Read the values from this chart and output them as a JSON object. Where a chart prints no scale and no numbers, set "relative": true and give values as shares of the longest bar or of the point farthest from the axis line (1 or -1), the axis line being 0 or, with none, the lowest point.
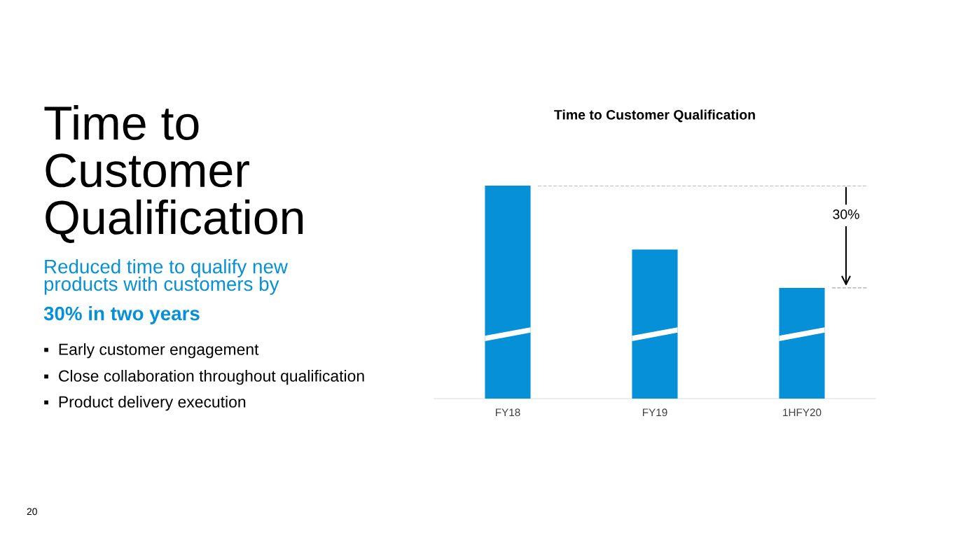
{
  "chart_data": {
    "type": "bar",
    "title": "Time to Customer Qualification",
    "subtitle": "Reduced time to qualify new\nproducts with customers by",
    "categories": [
      "FY18",
      "FY19",
      "1HFY20"
    ],
    "values": [
      1,
      0.7,
      0.52
    ],
    "color": "#0690d8",
    "relative": true,
    "grid": false,
    "legend": false,
    "ref_lines": [
      {
        "axis": "y",
        "value": 1,
        "color": "#a6a6a6",
        "line_style": "dashed"
      },
      {
        "axis": "y",
        "value": 0.52,
        "color": "#a6a6a6",
        "line_style": "dashed"
      }
    ],
    "annotations": [
      "Time to\nCustomer\nQualification",
      "30% in two years",
      "▪  Early customer engagement",
      "▪  Close collaboration throughout qualification",
      "▪  Product delivery execution",
      "30%",
      "20"
    ]
  }
}
